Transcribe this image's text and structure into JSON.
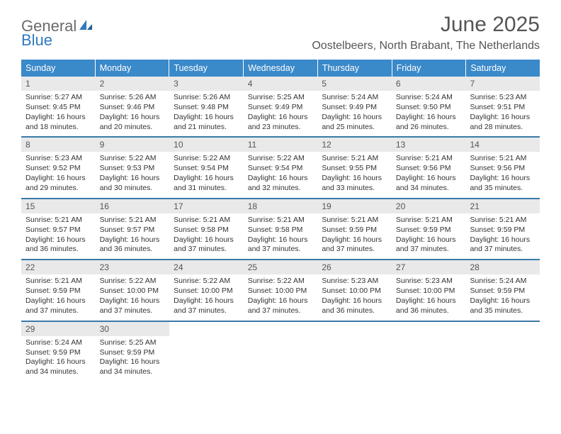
{
  "brand": {
    "general": "General",
    "blue": "Blue"
  },
  "title": "June 2025",
  "location": "Oostelbeers, North Brabant, The Netherlands",
  "colors": {
    "header_bg": "#3a89c9",
    "week_divider": "#3a7aa8",
    "daynum_bg": "#e9e9e9",
    "text": "#333333",
    "muted": "#555555",
    "brand_grey": "#6a6a6a",
    "brand_blue": "#2f7ac0"
  },
  "day_headers": [
    "Sunday",
    "Monday",
    "Tuesday",
    "Wednesday",
    "Thursday",
    "Friday",
    "Saturday"
  ],
  "weeks": [
    [
      {
        "num": "1",
        "sunrise": "Sunrise: 5:27 AM",
        "sunset": "Sunset: 9:45 PM",
        "daylight": "Daylight: 16 hours and 18 minutes."
      },
      {
        "num": "2",
        "sunrise": "Sunrise: 5:26 AM",
        "sunset": "Sunset: 9:46 PM",
        "daylight": "Daylight: 16 hours and 20 minutes."
      },
      {
        "num": "3",
        "sunrise": "Sunrise: 5:26 AM",
        "sunset": "Sunset: 9:48 PM",
        "daylight": "Daylight: 16 hours and 21 minutes."
      },
      {
        "num": "4",
        "sunrise": "Sunrise: 5:25 AM",
        "sunset": "Sunset: 9:49 PM",
        "daylight": "Daylight: 16 hours and 23 minutes."
      },
      {
        "num": "5",
        "sunrise": "Sunrise: 5:24 AM",
        "sunset": "Sunset: 9:49 PM",
        "daylight": "Daylight: 16 hours and 25 minutes."
      },
      {
        "num": "6",
        "sunrise": "Sunrise: 5:24 AM",
        "sunset": "Sunset: 9:50 PM",
        "daylight": "Daylight: 16 hours and 26 minutes."
      },
      {
        "num": "7",
        "sunrise": "Sunrise: 5:23 AM",
        "sunset": "Sunset: 9:51 PM",
        "daylight": "Daylight: 16 hours and 28 minutes."
      }
    ],
    [
      {
        "num": "8",
        "sunrise": "Sunrise: 5:23 AM",
        "sunset": "Sunset: 9:52 PM",
        "daylight": "Daylight: 16 hours and 29 minutes."
      },
      {
        "num": "9",
        "sunrise": "Sunrise: 5:22 AM",
        "sunset": "Sunset: 9:53 PM",
        "daylight": "Daylight: 16 hours and 30 minutes."
      },
      {
        "num": "10",
        "sunrise": "Sunrise: 5:22 AM",
        "sunset": "Sunset: 9:54 PM",
        "daylight": "Daylight: 16 hours and 31 minutes."
      },
      {
        "num": "11",
        "sunrise": "Sunrise: 5:22 AM",
        "sunset": "Sunset: 9:54 PM",
        "daylight": "Daylight: 16 hours and 32 minutes."
      },
      {
        "num": "12",
        "sunrise": "Sunrise: 5:21 AM",
        "sunset": "Sunset: 9:55 PM",
        "daylight": "Daylight: 16 hours and 33 minutes."
      },
      {
        "num": "13",
        "sunrise": "Sunrise: 5:21 AM",
        "sunset": "Sunset: 9:56 PM",
        "daylight": "Daylight: 16 hours and 34 minutes."
      },
      {
        "num": "14",
        "sunrise": "Sunrise: 5:21 AM",
        "sunset": "Sunset: 9:56 PM",
        "daylight": "Daylight: 16 hours and 35 minutes."
      }
    ],
    [
      {
        "num": "15",
        "sunrise": "Sunrise: 5:21 AM",
        "sunset": "Sunset: 9:57 PM",
        "daylight": "Daylight: 16 hours and 36 minutes."
      },
      {
        "num": "16",
        "sunrise": "Sunrise: 5:21 AM",
        "sunset": "Sunset: 9:57 PM",
        "daylight": "Daylight: 16 hours and 36 minutes."
      },
      {
        "num": "17",
        "sunrise": "Sunrise: 5:21 AM",
        "sunset": "Sunset: 9:58 PM",
        "daylight": "Daylight: 16 hours and 37 minutes."
      },
      {
        "num": "18",
        "sunrise": "Sunrise: 5:21 AM",
        "sunset": "Sunset: 9:58 PM",
        "daylight": "Daylight: 16 hours and 37 minutes."
      },
      {
        "num": "19",
        "sunrise": "Sunrise: 5:21 AM",
        "sunset": "Sunset: 9:59 PM",
        "daylight": "Daylight: 16 hours and 37 minutes."
      },
      {
        "num": "20",
        "sunrise": "Sunrise: 5:21 AM",
        "sunset": "Sunset: 9:59 PM",
        "daylight": "Daylight: 16 hours and 37 minutes."
      },
      {
        "num": "21",
        "sunrise": "Sunrise: 5:21 AM",
        "sunset": "Sunset: 9:59 PM",
        "daylight": "Daylight: 16 hours and 37 minutes."
      }
    ],
    [
      {
        "num": "22",
        "sunrise": "Sunrise: 5:21 AM",
        "sunset": "Sunset: 9:59 PM",
        "daylight": "Daylight: 16 hours and 37 minutes."
      },
      {
        "num": "23",
        "sunrise": "Sunrise: 5:22 AM",
        "sunset": "Sunset: 10:00 PM",
        "daylight": "Daylight: 16 hours and 37 minutes."
      },
      {
        "num": "24",
        "sunrise": "Sunrise: 5:22 AM",
        "sunset": "Sunset: 10:00 PM",
        "daylight": "Daylight: 16 hours and 37 minutes."
      },
      {
        "num": "25",
        "sunrise": "Sunrise: 5:22 AM",
        "sunset": "Sunset: 10:00 PM",
        "daylight": "Daylight: 16 hours and 37 minutes."
      },
      {
        "num": "26",
        "sunrise": "Sunrise: 5:23 AM",
        "sunset": "Sunset: 10:00 PM",
        "daylight": "Daylight: 16 hours and 36 minutes."
      },
      {
        "num": "27",
        "sunrise": "Sunrise: 5:23 AM",
        "sunset": "Sunset: 10:00 PM",
        "daylight": "Daylight: 16 hours and 36 minutes."
      },
      {
        "num": "28",
        "sunrise": "Sunrise: 5:24 AM",
        "sunset": "Sunset: 9:59 PM",
        "daylight": "Daylight: 16 hours and 35 minutes."
      }
    ],
    [
      {
        "num": "29",
        "sunrise": "Sunrise: 5:24 AM",
        "sunset": "Sunset: 9:59 PM",
        "daylight": "Daylight: 16 hours and 34 minutes."
      },
      {
        "num": "30",
        "sunrise": "Sunrise: 5:25 AM",
        "sunset": "Sunset: 9:59 PM",
        "daylight": "Daylight: 16 hours and 34 minutes."
      },
      null,
      null,
      null,
      null,
      null
    ]
  ]
}
